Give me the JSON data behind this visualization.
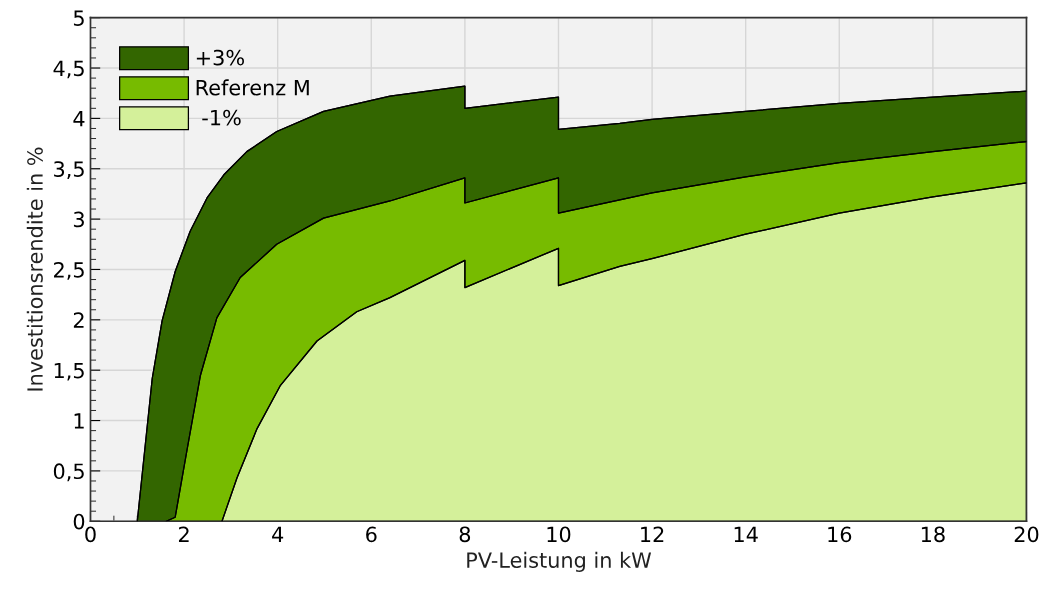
{
  "chart_data": {
    "type": "area",
    "xlabel": "PV-Leistung in kW",
    "ylabel": "Investitionsrendite in %",
    "xlim": [
      0,
      20
    ],
    "ylim": [
      0,
      5
    ],
    "xticks": [
      0,
      2,
      4,
      6,
      8,
      10,
      12,
      14,
      16,
      18,
      20
    ],
    "yticks": [
      0,
      {
        "value": 0.5,
        "label": "0,5"
      },
      1,
      {
        "value": 1.5,
        "label": "1,5"
      },
      2,
      {
        "value": 2.5,
        "label": "2,5"
      },
      3,
      {
        "value": 3.5,
        "label": "3,5"
      },
      4,
      {
        "value": 4.5,
        "label": "4,5"
      },
      5
    ],
    "grid": true,
    "legend": "top left",
    "series": [
      {
        "name": "+3%",
        "color": "#336600",
        "x": [
          1.0,
          1.32,
          1.53,
          1.81,
          2.13,
          2.49,
          2.85,
          3.34,
          3.98,
          4.98,
          6.4,
          8,
          8,
          10,
          10,
          11.31,
          12,
          14,
          16,
          18,
          20
        ],
        "values": [
          0,
          1.42,
          1.99,
          2.48,
          2.88,
          3.21,
          3.44,
          3.67,
          3.87,
          4.07,
          4.22,
          4.32,
          4.1,
          4.21,
          3.89,
          3.95,
          3.99,
          4.07,
          4.15,
          4.21,
          4.27
        ]
      },
      {
        "name": "Referenz M",
        "color": "#77bb00",
        "x": [
          1.62,
          1.81,
          2.06,
          2.35,
          2.7,
          3.2,
          3.98,
          4.98,
          6.4,
          8,
          8,
          10,
          10,
          11.31,
          12,
          14,
          16,
          18,
          20
        ],
        "values": [
          0,
          0.04,
          0.7,
          1.45,
          2.02,
          2.42,
          2.75,
          3.01,
          3.18,
          3.41,
          3.16,
          3.41,
          3.06,
          3.19,
          3.26,
          3.42,
          3.56,
          3.67,
          3.77
        ]
      },
      {
        "name": " -1%",
        "color": "#d4f09a",
        "x": [
          2.81,
          3.13,
          3.56,
          4.06,
          4.84,
          5.69,
          6.4,
          8,
          8,
          10,
          10,
          11.31,
          12.02,
          14,
          16,
          18,
          20
        ],
        "values": [
          0,
          0.43,
          0.92,
          1.35,
          1.79,
          2.08,
          2.22,
          2.59,
          2.32,
          2.71,
          2.34,
          2.53,
          2.61,
          2.85,
          3.06,
          3.22,
          3.36
        ]
      }
    ]
  }
}
